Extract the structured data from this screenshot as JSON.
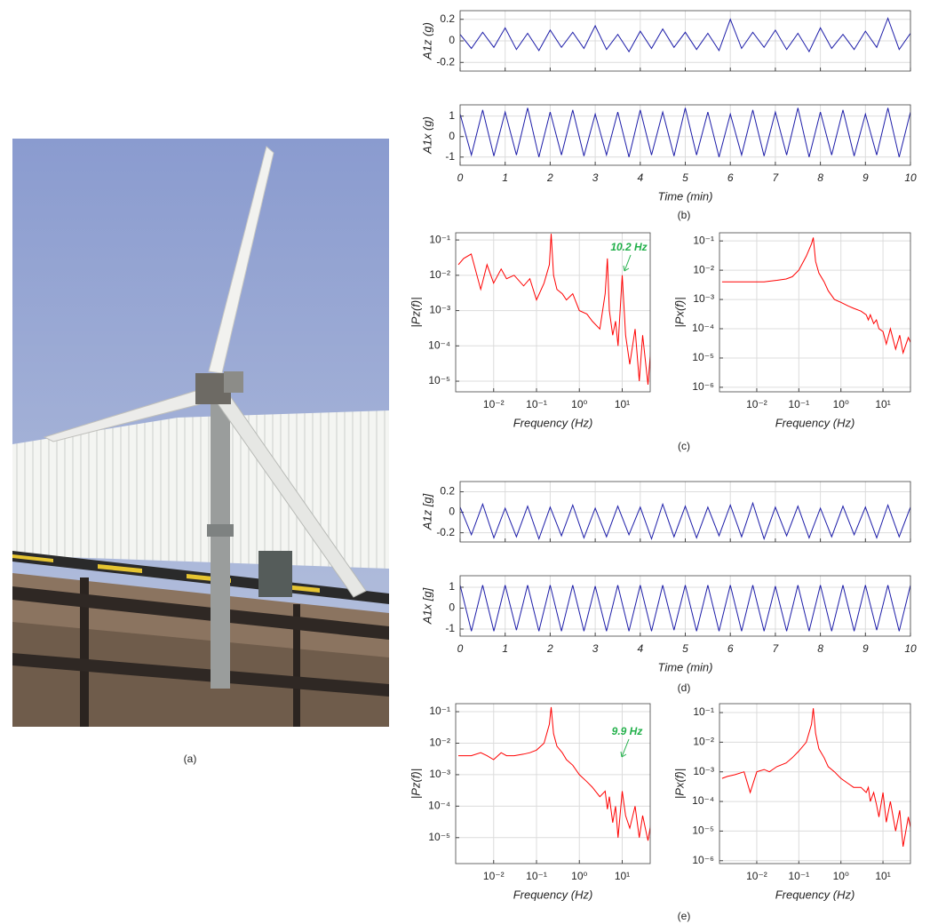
{
  "figure": {
    "captions": [
      "(a)",
      "(b)",
      "(c)",
      "(d)",
      "(e)"
    ]
  },
  "chart_data": [
    {
      "type": "line",
      "y_label": "A1z (g)",
      "color": "#1c1ca8",
      "grid": true,
      "show_xtick_labels": false,
      "xlim": [
        0,
        10
      ],
      "xticks": [
        0,
        1,
        2,
        3,
        4,
        5,
        6,
        7,
        8,
        9,
        10
      ],
      "ylim": [
        -0.28,
        0.28
      ],
      "yticks": [
        0.2,
        0,
        -0.2
      ],
      "x": [
        0,
        0.25,
        0.5,
        0.75,
        1,
        1.25,
        1.5,
        1.75,
        2,
        2.25,
        2.5,
        2.75,
        3,
        3.25,
        3.5,
        3.75,
        4,
        4.25,
        4.5,
        4.75,
        5,
        5.25,
        5.5,
        5.75,
        6,
        6.25,
        6.5,
        6.75,
        7,
        7.25,
        7.5,
        7.75,
        8,
        8.25,
        8.5,
        8.75,
        9,
        9.25,
        9.5,
        9.75,
        10
      ],
      "values": [
        0.06,
        -0.07,
        0.08,
        -0.06,
        0.12,
        -0.08,
        0.07,
        -0.09,
        0.1,
        -0.06,
        0.08,
        -0.07,
        0.14,
        -0.08,
        0.06,
        -0.1,
        0.09,
        -0.07,
        0.11,
        -0.06,
        0.08,
        -0.08,
        0.07,
        -0.09,
        0.2,
        -0.07,
        0.08,
        -0.06,
        0.1,
        -0.08,
        0.07,
        -0.1,
        0.12,
        -0.07,
        0.06,
        -0.08,
        0.09,
        -0.06,
        0.21,
        -0.08,
        0.07
      ]
    },
    {
      "type": "line",
      "y_label": "A1x (g)",
      "x_label": "Time (min)",
      "color": "#1c1ca8",
      "grid": true,
      "xlim": [
        0,
        10
      ],
      "xticks": [
        0,
        1,
        2,
        3,
        4,
        5,
        6,
        7,
        8,
        9,
        10
      ],
      "ylim": [
        -1.4,
        1.55
      ],
      "yticks": [
        1,
        0,
        -1
      ],
      "x": [
        0,
        0.25,
        0.5,
        0.75,
        1,
        1.25,
        1.5,
        1.75,
        2,
        2.25,
        2.5,
        2.75,
        3,
        3.25,
        3.5,
        3.75,
        4,
        4.25,
        4.5,
        4.75,
        5,
        5.25,
        5.5,
        5.75,
        6,
        6.25,
        6.5,
        6.75,
        7,
        7.25,
        7.5,
        7.75,
        8,
        8.25,
        8.5,
        8.75,
        9,
        9.25,
        9.5,
        9.75,
        10
      ],
      "values": [
        1.1,
        -0.9,
        1.3,
        -0.95,
        1.2,
        -0.9,
        1.4,
        -1,
        1.2,
        -0.9,
        1.3,
        -0.95,
        1.1,
        -0.9,
        1.2,
        -1,
        1.3,
        -0.9,
        1.2,
        -0.95,
        1.4,
        -0.9,
        1.2,
        -1,
        1.1,
        -0.9,
        1.3,
        -0.95,
        1.2,
        -0.9,
        1.4,
        -1,
        1.2,
        -0.9,
        1.3,
        -0.95,
        1.1,
        -0.9,
        1.4,
        -1,
        1.2
      ]
    },
    {
      "type": "line",
      "y_label": "|Pz(f)|",
      "x_label": "Frequency (Hz)",
      "color": "#ff0000",
      "grid": true,
      "xscale": "log",
      "yscale": "log",
      "annotation": "10.2 Hz",
      "xlim": [
        0.0013,
        45
      ],
      "xticks": [
        {
          "value": 0.01,
          "label": "10⁻²"
        },
        {
          "value": 0.1,
          "label": "10⁻¹"
        },
        {
          "value": 1,
          "label": "10⁰"
        },
        {
          "value": 10,
          "label": "10¹"
        }
      ],
      "ylim": [
        5e-06,
        0.16
      ],
      "yticks": [
        {
          "value": 0.1,
          "label": "10⁻¹"
        },
        {
          "value": 0.01,
          "label": "10⁻²"
        },
        {
          "value": 0.001,
          "label": "10⁻³"
        },
        {
          "value": 0.0001,
          "label": "10⁻⁴"
        },
        {
          "value": 1e-05,
          "label": "10⁻⁵"
        }
      ],
      "x": [
        0.0015,
        0.002,
        0.003,
        0.005,
        0.007,
        0.01,
        0.015,
        0.02,
        0.03,
        0.05,
        0.07,
        0.1,
        0.15,
        0.2,
        0.22,
        0.25,
        0.3,
        0.4,
        0.5,
        0.7,
        1,
        1.5,
        2,
        3,
        4,
        4.5,
        5,
        6,
        7,
        8,
        10,
        12,
        15,
        20,
        25,
        30,
        40,
        47
      ],
      "values": [
        0.02,
        0.03,
        0.04,
        0.004,
        0.02,
        0.006,
        0.015,
        0.008,
        0.01,
        0.005,
        0.008,
        0.002,
        0.006,
        0.02,
        0.15,
        0.01,
        0.004,
        0.003,
        0.002,
        0.003,
        0.001,
        0.0008,
        0.0005,
        0.0003,
        0.003,
        0.03,
        0.001,
        0.0002,
        0.0005,
        0.0001,
        0.01,
        0.0002,
        3e-05,
        0.0003,
        1e-05,
        0.0002,
        8e-06,
        0.0001
      ]
    },
    {
      "type": "line",
      "y_label": "|Px(f)|",
      "x_label": "Frequency (Hz)",
      "color": "#ff0000",
      "grid": true,
      "xscale": "log",
      "yscale": "log",
      "xlim": [
        0.0013,
        45
      ],
      "xticks": [
        {
          "value": 0.01,
          "label": "10⁻²"
        },
        {
          "value": 0.1,
          "label": "10⁻¹"
        },
        {
          "value": 1,
          "label": "10⁰"
        },
        {
          "value": 10,
          "label": "10¹"
        }
      ],
      "ylim": [
        7e-07,
        0.19
      ],
      "yticks": [
        {
          "value": 0.1,
          "label": "10⁻¹"
        },
        {
          "value": 0.01,
          "label": "10⁻²"
        },
        {
          "value": 0.001,
          "label": "10⁻³"
        },
        {
          "value": 0.0001,
          "label": "10⁻⁴"
        },
        {
          "value": 1e-05,
          "label": "10⁻⁵"
        },
        {
          "value": 1e-06,
          "label": "10⁻⁶"
        }
      ],
      "x": [
        0.0015,
        0.002,
        0.003,
        0.005,
        0.007,
        0.01,
        0.015,
        0.02,
        0.03,
        0.05,
        0.07,
        0.1,
        0.15,
        0.2,
        0.22,
        0.25,
        0.3,
        0.4,
        0.5,
        0.7,
        1,
        1.5,
        2,
        3,
        4,
        4.5,
        5,
        6,
        7,
        8,
        10,
        12,
        15,
        20,
        25,
        30,
        40,
        47
      ],
      "values": [
        0.004,
        0.004,
        0.004,
        0.004,
        0.004,
        0.004,
        0.004,
        0.0042,
        0.0045,
        0.005,
        0.006,
        0.01,
        0.03,
        0.08,
        0.13,
        0.02,
        0.008,
        0.004,
        0.002,
        0.001,
        0.0008,
        0.0006,
        0.0005,
        0.0004,
        0.0003,
        0.0002,
        0.0003,
        0.00015,
        0.0002,
        0.0001,
        8e-05,
        3e-05,
        0.0001,
        2e-05,
        6e-05,
        1.5e-05,
        5e-05,
        3e-05
      ]
    },
    {
      "type": "line",
      "y_label": "A1z [g]",
      "color": "#1c1ca8",
      "grid": true,
      "show_xtick_labels": false,
      "xlim": [
        0,
        10
      ],
      "xticks": [
        0,
        1,
        2,
        3,
        4,
        5,
        6,
        7,
        8,
        9,
        10
      ],
      "ylim": [
        -0.29,
        0.3
      ],
      "yticks": [
        0.2,
        0,
        -0.2
      ],
      "x": [
        0,
        0.25,
        0.5,
        0.75,
        1,
        1.25,
        1.5,
        1.75,
        2,
        2.25,
        2.5,
        2.75,
        3,
        3.25,
        3.5,
        3.75,
        4,
        4.25,
        4.5,
        4.75,
        5,
        5.25,
        5.5,
        5.75,
        6,
        6.25,
        6.5,
        6.75,
        7,
        7.25,
        7.5,
        7.75,
        8,
        8.25,
        8.5,
        8.75,
        9,
        9.25,
        9.5,
        9.75,
        10
      ],
      "values": [
        0.05,
        -0.22,
        0.08,
        -0.25,
        0.04,
        -0.24,
        0.06,
        -0.26,
        0.05,
        -0.23,
        0.07,
        -0.25,
        0.04,
        -0.24,
        0.06,
        -0.22,
        0.05,
        -0.26,
        0.08,
        -0.24,
        0.06,
        -0.25,
        0.05,
        -0.23,
        0.07,
        -0.24,
        0.09,
        -0.26,
        0.05,
        -0.23,
        0.06,
        -0.25,
        0.04,
        -0.24,
        0.06,
        -0.22,
        0.05,
        -0.25,
        0.07,
        -0.24,
        0.05
      ]
    },
    {
      "type": "line",
      "y_label": "A1x [g]",
      "x_label": "Time (min)",
      "color": "#1c1ca8",
      "grid": true,
      "xlim": [
        0,
        10
      ],
      "xticks": [
        0,
        1,
        2,
        3,
        4,
        5,
        6,
        7,
        8,
        9,
        10
      ],
      "ylim": [
        -1.34,
        1.55
      ],
      "yticks": [
        1,
        0,
        -1
      ],
      "x": [
        0,
        0.25,
        0.5,
        0.75,
        1,
        1.25,
        1.5,
        1.75,
        2,
        2.25,
        2.5,
        2.75,
        3,
        3.25,
        3.5,
        3.75,
        4,
        4.25,
        4.5,
        4.75,
        5,
        5.25,
        5.5,
        5.75,
        6,
        6.25,
        6.5,
        6.75,
        7,
        7.25,
        7.5,
        7.75,
        8,
        8.25,
        8.5,
        8.75,
        9,
        9.25,
        9.5,
        9.75,
        10
      ],
      "values": [
        1.1,
        -1.1,
        1.1,
        -1.1,
        1.1,
        -1.05,
        1.1,
        -1.1,
        1.1,
        -1.1,
        1.1,
        -1.1,
        1.05,
        -1.1,
        1.1,
        -1.1,
        1.1,
        -1.1,
        1.1,
        -1.05,
        1.1,
        -1.1,
        1.1,
        -1.1,
        1.1,
        -1.1,
        1.1,
        -1.1,
        1.05,
        -1.1,
        1.1,
        -1.1,
        1.1,
        -1.1,
        1.1,
        -1.1,
        1.1,
        -1.05,
        1.1,
        -1.1,
        1.1
      ]
    },
    {
      "type": "line",
      "y_label": "|Pz(f)|",
      "x_label": "Frequency (Hz)",
      "color": "#ff0000",
      "grid": true,
      "xscale": "log",
      "yscale": "log",
      "annotation": "9.9 Hz",
      "xlim": [
        0.0013,
        45
      ],
      "xticks": [
        {
          "value": 0.01,
          "label": "10⁻²"
        },
        {
          "value": 0.1,
          "label": "10⁻¹"
        },
        {
          "value": 1,
          "label": "10⁰"
        },
        {
          "value": 10,
          "label": "10¹"
        }
      ],
      "ylim": [
        1.5e-06,
        0.18
      ],
      "yticks": [
        {
          "value": 0.1,
          "label": "10⁻¹"
        },
        {
          "value": 0.01,
          "label": "10⁻²"
        },
        {
          "value": 0.001,
          "label": "10⁻³"
        },
        {
          "value": 0.0001,
          "label": "10⁻⁴"
        },
        {
          "value": 1e-05,
          "label": "10⁻⁵"
        }
      ],
      "x": [
        0.0015,
        0.002,
        0.003,
        0.005,
        0.007,
        0.01,
        0.015,
        0.02,
        0.03,
        0.05,
        0.07,
        0.1,
        0.15,
        0.2,
        0.22,
        0.25,
        0.3,
        0.4,
        0.5,
        0.7,
        1,
        1.5,
        2,
        3,
        4,
        4.5,
        5,
        6,
        7,
        8,
        10,
        12,
        15,
        20,
        25,
        30,
        40,
        47
      ],
      "values": [
        0.004,
        0.004,
        0.004,
        0.005,
        0.004,
        0.003,
        0.005,
        0.004,
        0.004,
        0.0045,
        0.005,
        0.006,
        0.01,
        0.04,
        0.14,
        0.02,
        0.008,
        0.005,
        0.003,
        0.002,
        0.001,
        0.0006,
        0.0004,
        0.0002,
        0.0003,
        8e-05,
        0.0002,
        3e-05,
        0.0001,
        1e-05,
        0.0003,
        5e-05,
        2e-05,
        0.0001,
        1e-05,
        5e-05,
        8e-06,
        3e-05
      ]
    },
    {
      "type": "line",
      "y_label": "|Px(f)|",
      "x_label": "Frequency (Hz)",
      "color": "#ff0000",
      "grid": true,
      "xscale": "log",
      "yscale": "log",
      "xlim": [
        0.0013,
        45
      ],
      "xticks": [
        {
          "value": 0.01,
          "label": "10⁻²"
        },
        {
          "value": 0.1,
          "label": "10⁻¹"
        },
        {
          "value": 1,
          "label": "10⁰"
        },
        {
          "value": 10,
          "label": "10¹"
        }
      ],
      "ylim": [
        8e-07,
        0.2
      ],
      "yticks": [
        {
          "value": 0.1,
          "label": "10⁻¹"
        },
        {
          "value": 0.01,
          "label": "10⁻²"
        },
        {
          "value": 0.001,
          "label": "10⁻³"
        },
        {
          "value": 0.0001,
          "label": "10⁻⁴"
        },
        {
          "value": 1e-05,
          "label": "10⁻⁵"
        },
        {
          "value": 1e-06,
          "label": "10⁻⁶"
        }
      ],
      "x": [
        0.0015,
        0.002,
        0.003,
        0.005,
        0.007,
        0.01,
        0.015,
        0.02,
        0.03,
        0.05,
        0.07,
        0.1,
        0.15,
        0.2,
        0.22,
        0.25,
        0.3,
        0.4,
        0.5,
        0.7,
        1,
        1.5,
        2,
        3,
        4,
        4.5,
        5,
        6,
        7,
        8,
        10,
        12,
        15,
        20,
        25,
        30,
        40,
        47
      ],
      "values": [
        0.0006,
        0.0007,
        0.0008,
        0.001,
        0.0002,
        0.001,
        0.0012,
        0.001,
        0.0015,
        0.002,
        0.003,
        0.005,
        0.01,
        0.04,
        0.14,
        0.02,
        0.006,
        0.003,
        0.0015,
        0.001,
        0.0006,
        0.0004,
        0.0003,
        0.0003,
        0.0002,
        0.0003,
        0.0001,
        0.0002,
        8e-05,
        3e-05,
        0.0002,
        2e-05,
        0.0001,
        1e-05,
        5e-05,
        3e-06,
        3e-05,
        1e-05
      ]
    }
  ]
}
